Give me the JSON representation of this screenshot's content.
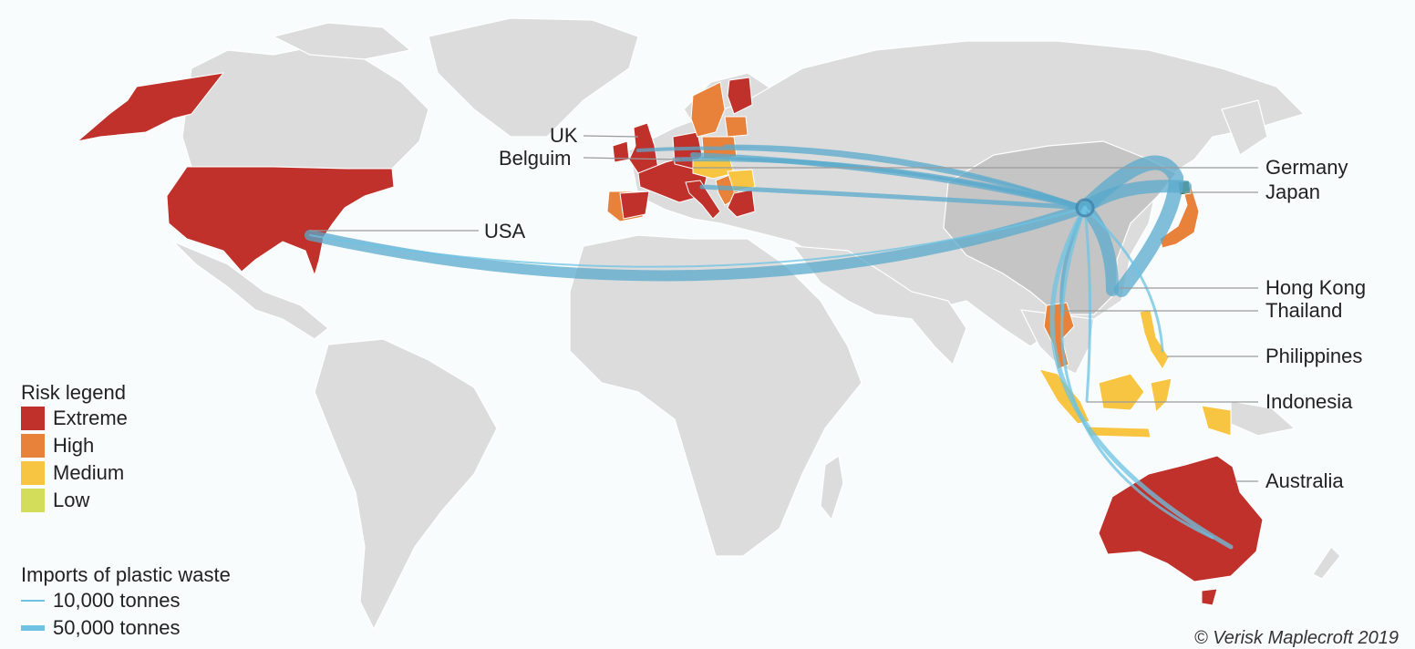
{
  "map": {
    "highlight_country": "China",
    "colors": {
      "background": "#f8fcfd",
      "land": "#dcdcdc",
      "destination": "#c5c5c5",
      "flow": "#5aa9cc",
      "extreme": "#c0312b",
      "high": "#e8813a",
      "medium": "#f7c542",
      "low": "#d4dd5a"
    },
    "labels": [
      {
        "id": "uk",
        "text": "UK"
      },
      {
        "id": "belgium",
        "text": "Belguim"
      },
      {
        "id": "usa",
        "text": "USA"
      },
      {
        "id": "germany",
        "text": "Germany"
      },
      {
        "id": "japan",
        "text": "Japan"
      },
      {
        "id": "hong-kong",
        "text": "Hong Kong"
      },
      {
        "id": "thailand",
        "text": "Thailand"
      },
      {
        "id": "philippines",
        "text": "Philippines"
      },
      {
        "id": "indonesia",
        "text": "Indonesia"
      },
      {
        "id": "australia",
        "text": "Australia"
      }
    ]
  },
  "risk_legend": {
    "title": "Risk legend",
    "items": [
      {
        "label": "Extreme",
        "color": "#c0312b"
      },
      {
        "label": "High",
        "color": "#e8813a"
      },
      {
        "label": "Medium",
        "color": "#f7c542"
      },
      {
        "label": "Low",
        "color": "#d4dd5a"
      }
    ]
  },
  "imports_legend": {
    "title": "Imports of plastic waste",
    "items": [
      {
        "label": "10,000 tonnes"
      },
      {
        "label": "50,000 tonnes"
      }
    ]
  },
  "credit": "© Verisk Maplecroft 2019"
}
